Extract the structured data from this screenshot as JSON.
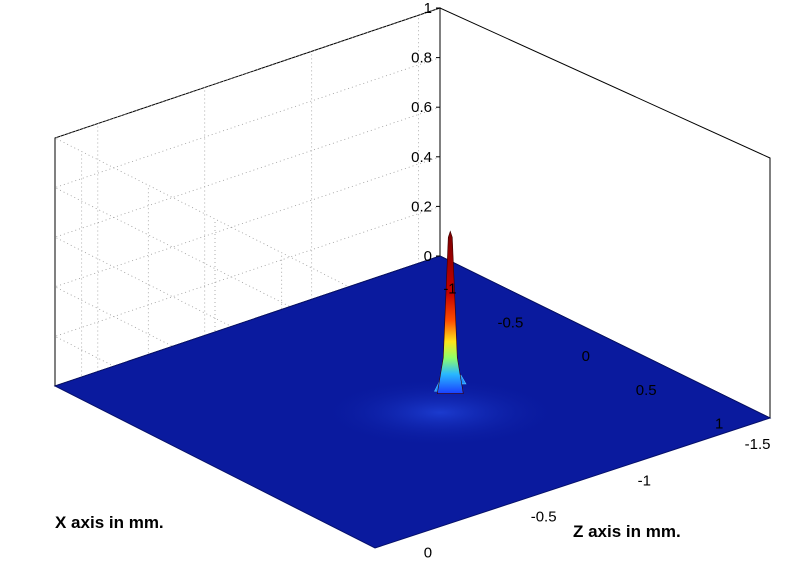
{
  "chart_data": {
    "type": "surface",
    "title": "",
    "xlabel": "X axis in mm.",
    "ylabel": "Z axis in mm.",
    "zlabel": "",
    "x_ticks": [
      "-1",
      "-0.5",
      "0",
      "0.5",
      "1"
    ],
    "y_ticks": [
      "-1.5",
      "-1",
      "-0.5",
      "0"
    ],
    "z_ticks": [
      "0",
      "0.2",
      "0.4",
      "0.6",
      "0.8",
      "1"
    ],
    "xlim": [
      -1.2,
      1.2
    ],
    "ylim": [
      -1.6,
      0.2
    ],
    "zlim": [
      0,
      1
    ],
    "grid": true,
    "colormap": "jet",
    "base_color": "#0a1a9e",
    "peak": {
      "x": 0.0,
      "y": -0.9,
      "z": 0.63
    },
    "secondary_ripples": [
      {
        "x": -0.05,
        "y": -0.9,
        "z": 0.06
      },
      {
        "x": 0.05,
        "y": -0.9,
        "z": 0.05
      },
      {
        "x": 0.0,
        "y": -0.85,
        "z": 0.04
      },
      {
        "x": 0.0,
        "y": -0.95,
        "z": 0.035
      }
    ]
  }
}
